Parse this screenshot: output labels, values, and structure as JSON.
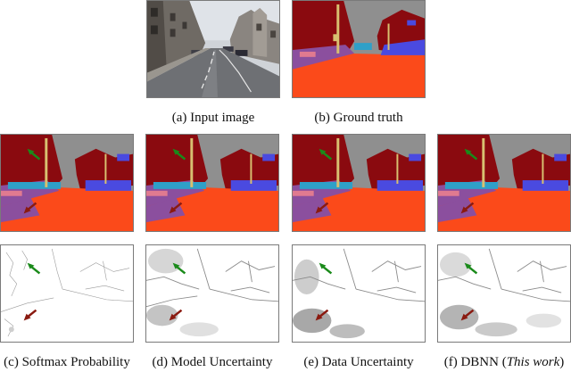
{
  "figure": {
    "top_row": {
      "input": {
        "caption": "(a) Input image"
      },
      "ground_truth": {
        "caption": "(b) Ground truth"
      }
    },
    "columns": [
      {
        "key": "softmax",
        "caption": "(c) Softmax Probability"
      },
      {
        "key": "model",
        "caption": "(d) Model Uncertainty"
      },
      {
        "key": "data",
        "caption": "(e) Data Uncertainty"
      },
      {
        "key": "dbnn",
        "caption_prefix": "(f) DBNN (",
        "caption_italic": "This work",
        "caption_suffix": ")"
      }
    ],
    "colors": {
      "sky": "#8f8f8f",
      "building": "#8a0a0f",
      "road": "#fb4a1a",
      "sidewalk": "#8b4f9e",
      "car": "#4a4ae0",
      "pole": "#d8c070",
      "vegetation": "#2fa0c8",
      "pedestrian": "#e07a90",
      "arrow_green": "#1a8a1a",
      "arrow_red": "#8a1a10"
    }
  }
}
